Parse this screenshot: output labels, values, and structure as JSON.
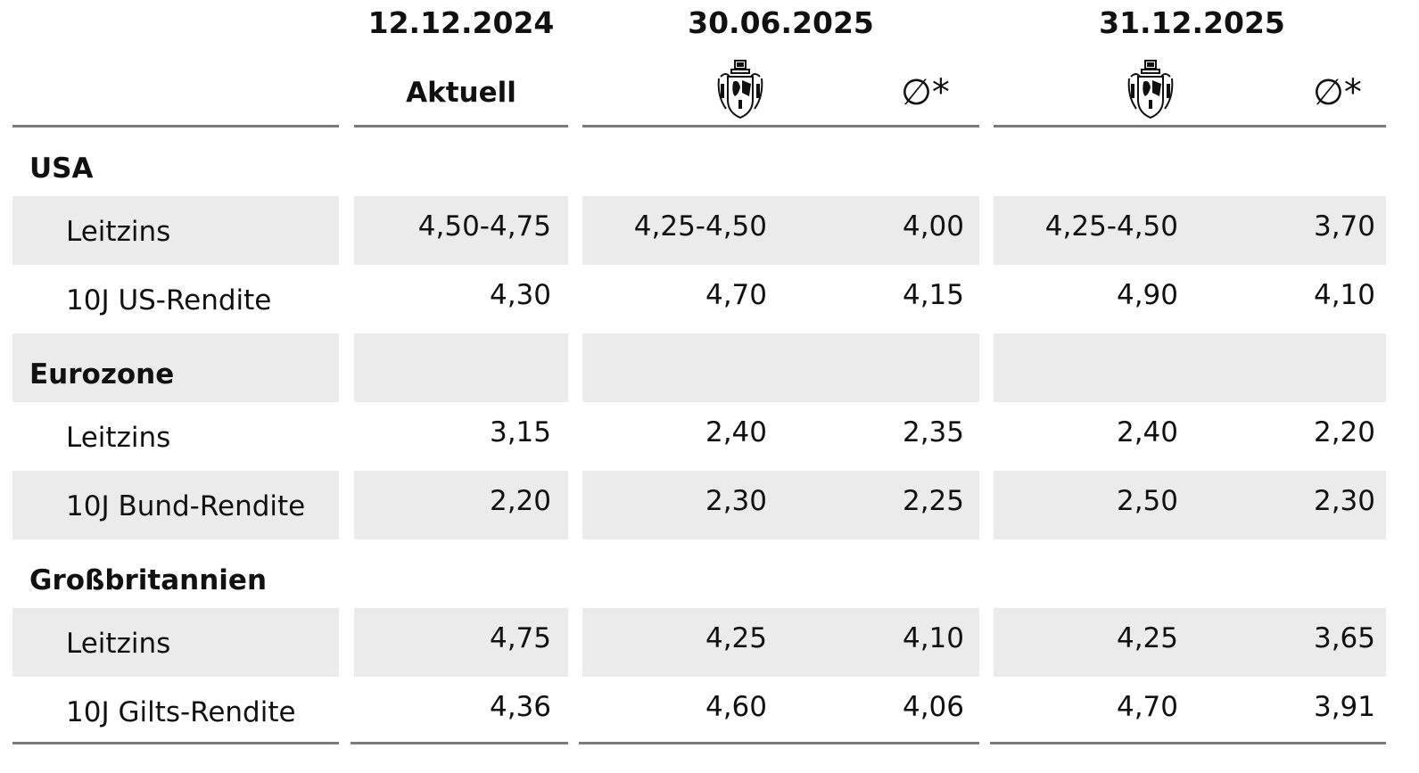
{
  "header": {
    "dates": [
      "12.12.2024",
      "30.06.2025",
      "31.12.2025"
    ],
    "current_label": "Aktuell",
    "average_label": "∅*",
    "logo_icon": "coat-of-arms-icon"
  },
  "rows": [
    {
      "type": "section",
      "label": "USA",
      "values": []
    },
    {
      "type": "item",
      "label": "Leitzins",
      "values": [
        "4,50-4,75",
        "4,25-4,50",
        "4,00",
        "4,25-4,50",
        "3,70"
      ]
    },
    {
      "type": "item",
      "label": "10J US-Rendite",
      "values": [
        "4,30",
        "4,70",
        "4,15",
        "4,90",
        "4,10"
      ]
    },
    {
      "type": "section",
      "label": "Eurozone",
      "values": []
    },
    {
      "type": "item",
      "label": "Leitzins",
      "values": [
        "3,15",
        "2,40",
        "2,35",
        "2,40",
        "2,20"
      ]
    },
    {
      "type": "item",
      "label": "10J Bund-Rendite",
      "values": [
        "2,20",
        "2,30",
        "2,25",
        "2,50",
        "2,30"
      ]
    },
    {
      "type": "section",
      "label": "Großbritannien",
      "values": []
    },
    {
      "type": "item",
      "label": "Leitzins",
      "values": [
        "4,75",
        "4,25",
        "4,10",
        "4,25",
        "3,65"
      ]
    },
    {
      "type": "item",
      "label": "10J Gilts-Rendite",
      "values": [
        "4,36",
        "4,60",
        "4,06",
        "4,70",
        "3,91"
      ]
    }
  ]
}
